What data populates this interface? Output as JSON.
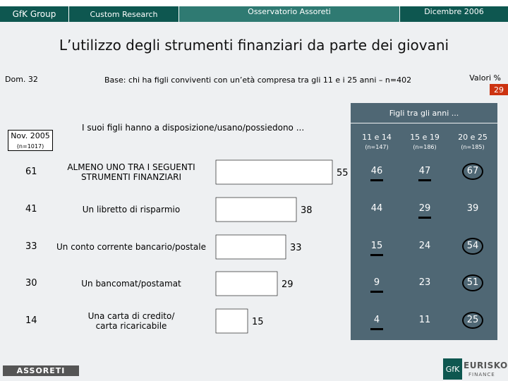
{
  "header": {
    "brand": "GfK Group",
    "section": "Custom Research",
    "study": "Osservatorio Assoreti",
    "date": "Dicembre 2006"
  },
  "title": "L’utilizzo degli strumenti finanziari da parte dei giovani",
  "dom": "Dom. 32",
  "base": "Base: chi ha figli conviventi con un’età compresa tra gli 11 e i 25 anni – n=402",
  "valori": "Valori %",
  "page_number": "29",
  "question": "I suoi figli hanno a disposizione/usano/possiedono ...",
  "nov": {
    "label": "Nov. 2005",
    "n": "(n=1017)"
  },
  "figli": {
    "header": "Figli tra gli anni ...",
    "columns": [
      {
        "label": "11 e 14",
        "n": "(n=147)"
      },
      {
        "label": "15 e 19",
        "n": "(n=186)"
      },
      {
        "label": "20 e 25",
        "n": "(n=185)"
      }
    ]
  },
  "chart_data": {
    "type": "bar",
    "orientation": "horizontal",
    "categories": [
      "ALMENO UNO TRA I SEGUENTI STRUMENTI FINANZIARI",
      "Un libretto di risparmio",
      "Un conto corrente bancario/postale",
      "Un bancomat/postamat",
      "Una carta di credito/ carta ricaricabile"
    ],
    "label_lines": [
      [
        "ALMENO UNO TRA I SEGUENTI",
        "STRUMENTI FINANZIARI"
      ],
      [
        "Un libretto di risparmio"
      ],
      [
        "Un conto corrente bancario/postale"
      ],
      [
        "Un bancomat/postamat"
      ],
      [
        "Una carta di credito/",
        "carta ricaricabile"
      ]
    ],
    "series": [
      {
        "name": "Dicembre 2006",
        "values": [
          55,
          38,
          33,
          29,
          15
        ]
      }
    ],
    "previous": {
      "name": "Nov. 2005",
      "values": [
        61,
        41,
        33,
        30,
        14
      ]
    },
    "by_age": [
      {
        "name": "11 e 14",
        "values": [
          46,
          44,
          15,
          9,
          4
        ],
        "marks": [
          "under",
          "none",
          "under",
          "under",
          "under"
        ]
      },
      {
        "name": "15 e 19",
        "values": [
          47,
          29,
          24,
          23,
          11
        ],
        "marks": [
          "under",
          "under",
          "none",
          "none",
          "none"
        ]
      },
      {
        "name": "20 e 25",
        "values": [
          67,
          39,
          54,
          51,
          25
        ],
        "marks": [
          "circle",
          "none",
          "circle",
          "circle",
          "circle"
        ]
      }
    ],
    "bar_color": "#ffffff",
    "bar_stroke": "#000000",
    "xlim": [
      0,
      100
    ]
  }
}
